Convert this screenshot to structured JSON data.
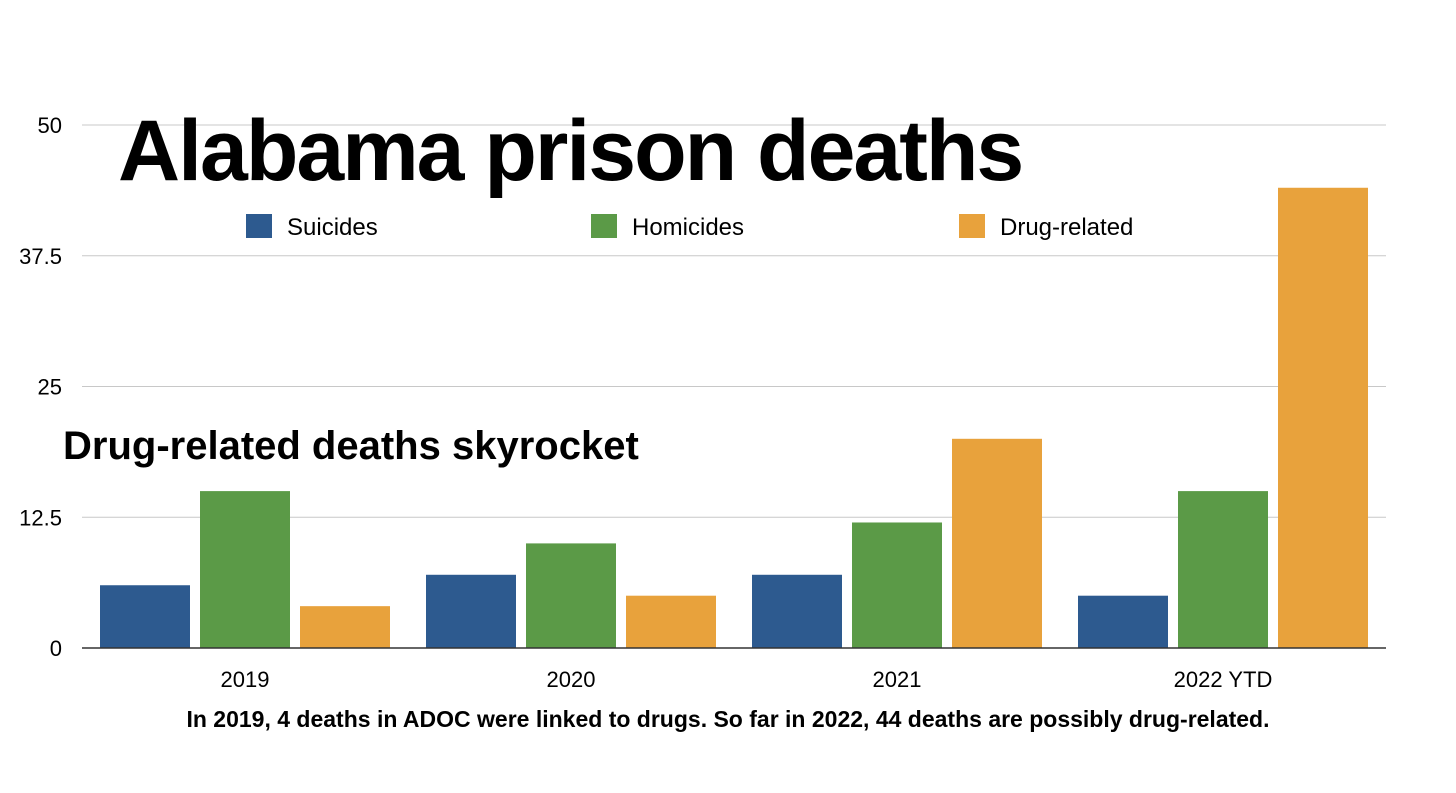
{
  "chart_data": {
    "type": "bar",
    "title": "Alabama prison deaths",
    "subtitle": "Drug-related deaths skyrocket",
    "caption": "In 2019, 4 deaths in ADOC were linked to drugs. So far in 2022, 44 deaths are possibly drug-related.",
    "categories": [
      "2019",
      "2020",
      "2021",
      "2022 YTD"
    ],
    "series": [
      {
        "name": "Suicides",
        "color": "#2d5a8f",
        "values": [
          6,
          7,
          7,
          5
        ]
      },
      {
        "name": "Homicides",
        "color": "#5b9a47",
        "values": [
          15,
          10,
          12,
          15
        ]
      },
      {
        "name": "Drug-related",
        "color": "#e8a23c",
        "values": [
          4,
          5,
          20,
          44
        ]
      }
    ],
    "ylim": [
      0,
      50
    ],
    "yticks": [
      "0",
      "12.5",
      "25",
      "37.5",
      "50"
    ],
    "ytick_values": [
      0,
      12.5,
      25,
      37.5,
      50
    ],
    "xlabel": "",
    "ylabel": "",
    "grid": true,
    "legend_position": "top"
  }
}
